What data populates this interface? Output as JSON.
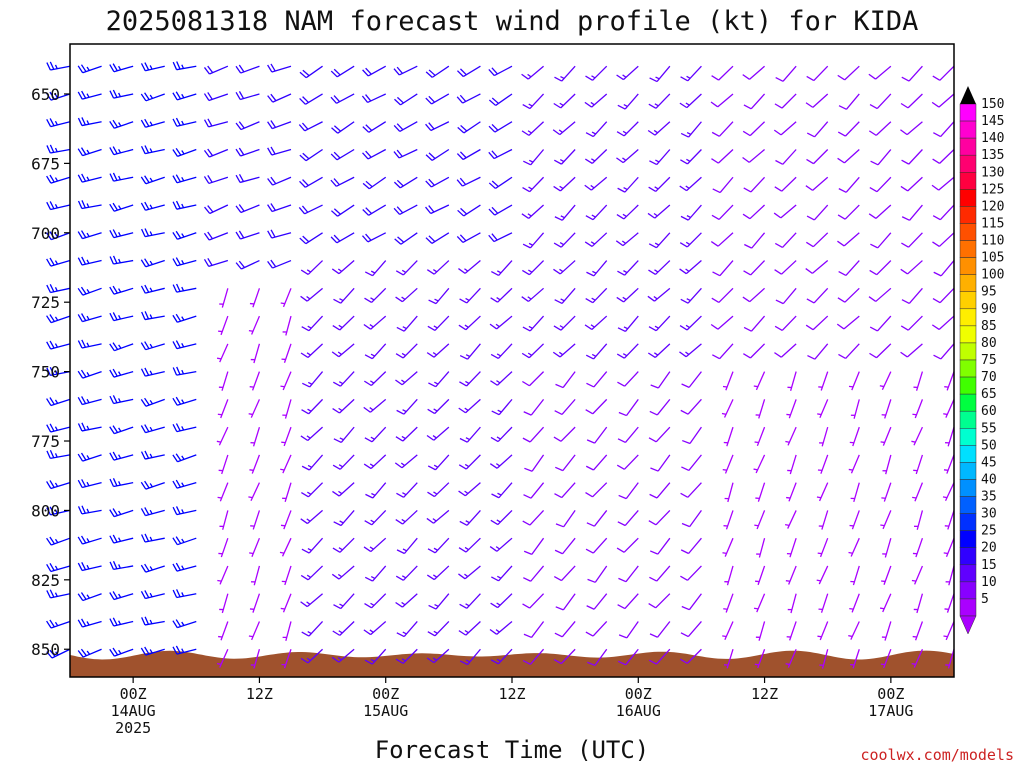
{
  "chart_data": {
    "type": "wind barb profile",
    "title": "2025081318 NAM forecast wind profile (kt) for KIDA",
    "xlabel": "Forecast Time (UTC)",
    "credit": "coolwx.com/models",
    "y_axis": {
      "quantity": "pressure (hPa)",
      "range": [
        860,
        632
      ],
      "inverted": true,
      "ticks": [
        650,
        675,
        700,
        725,
        750,
        775,
        800,
        825,
        850
      ]
    },
    "x_axis": {
      "start_hours_after_00z_14aug": -6,
      "end_hours_after_00z_14aug": 78,
      "time_step_hours": 3,
      "ticks": [
        {
          "hour": 0,
          "lines": [
            "00Z",
            "14AUG",
            "2025"
          ]
        },
        {
          "hour": 12,
          "lines": [
            "12Z"
          ]
        },
        {
          "hour": 24,
          "lines": [
            "00Z",
            "15AUG"
          ]
        },
        {
          "hour": 36,
          "lines": [
            "12Z"
          ]
        },
        {
          "hour": 48,
          "lines": [
            "00Z",
            "16AUG"
          ]
        },
        {
          "hour": 60,
          "lines": [
            "12Z"
          ]
        },
        {
          "hour": 72,
          "lines": [
            "00Z",
            "17AUG"
          ]
        }
      ]
    },
    "pressure_levels": [
      850,
      840,
      830,
      820,
      810,
      800,
      790,
      780,
      770,
      760,
      750,
      740,
      730,
      720,
      710,
      700,
      690,
      680,
      670,
      660,
      650,
      640
    ],
    "colorbar": {
      "labels": [
        150,
        145,
        140,
        135,
        130,
        125,
        120,
        115,
        110,
        105,
        100,
        95,
        90,
        85,
        80,
        75,
        70,
        65,
        60,
        55,
        50,
        45,
        40,
        35,
        30,
        25,
        20,
        15,
        10,
        5
      ],
      "colors": [
        "#ff00ff",
        "#ff00d0",
        "#ff00a0",
        "#ff0070",
        "#ff0040",
        "#ff0000",
        "#ff2a00",
        "#ff5000",
        "#ff7000",
        "#ff9000",
        "#ffb000",
        "#ffd000",
        "#ffee00",
        "#f0ff00",
        "#c0ff00",
        "#80ff00",
        "#40ff00",
        "#00ff40",
        "#00ff90",
        "#00ffd0",
        "#00e0ff",
        "#00b8ff",
        "#0090ff",
        "#0060ff",
        "#0030ff",
        "#0000ff",
        "#3000ff",
        "#6000ff",
        "#8800ff",
        "#aa00ff"
      ]
    },
    "terrain_color": "#a0522d",
    "wind_regimes": [
      {
        "hours": [
          -6,
          8
        ],
        "pressure": [
          632,
          860
        ],
        "speed_kt": 28,
        "direction_deg": 255
      },
      {
        "hours": [
          9,
          15
        ],
        "pressure": [
          632,
          715
        ],
        "speed_kt": 20,
        "direction_deg": 250
      },
      {
        "hours": [
          9,
          15
        ],
        "pressure": [
          715,
          860
        ],
        "speed_kt": 8,
        "direction_deg": 200
      },
      {
        "hours": [
          16,
          36
        ],
        "pressure": [
          632,
          700
        ],
        "speed_kt": 22,
        "direction_deg": 240
      },
      {
        "hours": [
          16,
          36
        ],
        "pressure": [
          700,
          860
        ],
        "speed_kt": 16,
        "direction_deg": 225
      },
      {
        "hours": [
          37,
          56
        ],
        "pressure": [
          632,
          740
        ],
        "speed_kt": 15,
        "direction_deg": 225
      },
      {
        "hours": [
          37,
          56
        ],
        "pressure": [
          740,
          860
        ],
        "speed_kt": 10,
        "direction_deg": 220
      },
      {
        "hours": [
          57,
          78
        ],
        "pressure": [
          632,
          740
        ],
        "speed_kt": 12,
        "direction_deg": 225
      },
      {
        "hours": [
          57,
          78
        ],
        "pressure": [
          740,
          860
        ],
        "speed_kt": 6,
        "direction_deg": 200
      }
    ]
  }
}
